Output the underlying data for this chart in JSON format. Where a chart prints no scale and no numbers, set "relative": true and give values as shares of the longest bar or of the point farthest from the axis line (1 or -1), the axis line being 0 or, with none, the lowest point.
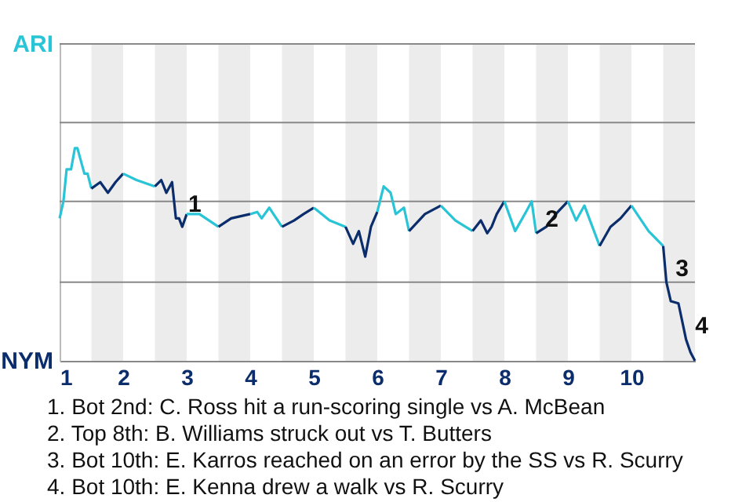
{
  "chart_data": {
    "type": "line",
    "relative": true,
    "series": [
      {
        "name": "ARI",
        "color": "#29c4d6",
        "x": [
          1,
          1.06,
          1.11,
          1.18,
          1.24,
          1.28,
          1.39,
          1.44,
          1.5
        ],
        "values": [
          0.67,
          0.75,
          0.9,
          0.9,
          1,
          1,
          0.88,
          0.88,
          0.81
        ]
      },
      {
        "name": "NYM",
        "color": "#0b2d6b",
        "x": [
          1.5,
          1.64,
          1.76,
          1.88,
          2
        ],
        "values": [
          0.81,
          0.84,
          0.79,
          0.84,
          0.88
        ]
      },
      {
        "color": "#29c4d6",
        "x": [
          2,
          2.21,
          2.5
        ],
        "values": [
          0.88,
          0.85,
          0.82
        ]
      },
      {
        "color": "#0b2d6b",
        "x": [
          2.5,
          2.6,
          2.68,
          2.77,
          2.83,
          2.88,
          2.93,
          3
        ],
        "values": [
          0.82,
          0.85,
          0.79,
          0.84,
          0.67,
          0.67,
          0.63,
          0.69
        ]
      },
      {
        "color": "#29c4d6",
        "x": [
          3,
          3.2,
          3.5
        ],
        "values": [
          0.69,
          0.69,
          0.63
        ]
      },
      {
        "color": "#0b2d6b",
        "x": [
          3.5,
          3.7,
          4
        ],
        "values": [
          0.63,
          0.67,
          0.69
        ]
      },
      {
        "color": "#29c4d6",
        "x": [
          4,
          4.11,
          4.18,
          4.3,
          4.5
        ],
        "values": [
          0.69,
          0.7,
          0.67,
          0.72,
          0.63
        ]
      },
      {
        "color": "#0b2d6b",
        "x": [
          4.5,
          4.69,
          4.84,
          5
        ],
        "values": [
          0.63,
          0.66,
          0.69,
          0.72
        ]
      },
      {
        "color": "#29c4d6",
        "x": [
          5,
          5.25,
          5.5
        ],
        "values": [
          0.72,
          0.66,
          0.63
        ]
      },
      {
        "color": "#0b2d6b",
        "x": [
          5.5,
          5.62,
          5.71,
          5.81,
          5.9,
          6
        ],
        "values": [
          0.63,
          0.55,
          0.61,
          0.49,
          0.63,
          0.7
        ]
      },
      {
        "color": "#29c4d6",
        "x": [
          6,
          6.1,
          6.21,
          6.29,
          6.42,
          6.5
        ],
        "values": [
          0.7,
          0.82,
          0.79,
          0.69,
          0.72,
          0.61
        ]
      },
      {
        "color": "#0b2d6b",
        "x": [
          6.5,
          6.75,
          7
        ],
        "values": [
          0.61,
          0.69,
          0.73
        ]
      },
      {
        "color": "#29c4d6",
        "x": [
          7,
          7.23,
          7.5
        ],
        "values": [
          0.73,
          0.66,
          0.61
        ]
      },
      {
        "color": "#0b2d6b",
        "x": [
          7.5,
          7.63,
          7.73,
          7.8,
          7.88,
          8
        ],
        "values": [
          0.61,
          0.66,
          0.6,
          0.63,
          0.69,
          0.75
        ]
      },
      {
        "color": "#29c4d6",
        "x": [
          8,
          8.17,
          8.34,
          8.43,
          8.5
        ],
        "values": [
          0.75,
          0.61,
          0.7,
          0.75,
          0.6
        ]
      },
      {
        "color": "#0b2d6b",
        "x": [
          8.5,
          8.66,
          8.81,
          9
        ],
        "values": [
          0.6,
          0.63,
          0.69,
          0.75
        ]
      },
      {
        "color": "#29c4d6",
        "x": [
          9,
          9.13,
          9.26,
          9.5
        ],
        "values": [
          0.75,
          0.66,
          0.73,
          0.54
        ]
      },
      {
        "color": "#0b2d6b",
        "x": [
          9.5,
          9.67,
          9.83,
          10
        ],
        "values": [
          0.54,
          0.63,
          0.67,
          0.73
        ]
      },
      {
        "color": "#29c4d6",
        "x": [
          10,
          10.27,
          10.5
        ],
        "values": [
          0.73,
          0.61,
          0.54
        ]
      },
      {
        "color": "#0b2d6b",
        "x": [
          10.5,
          10.55,
          10.62,
          10.74,
          10.86,
          10.93,
          11
        ],
        "values": [
          0.54,
          0.37,
          0.28,
          0.27,
          0.1,
          0.04,
          0
        ]
      }
    ],
    "xlim": [
      1,
      11
    ],
    "xticks": [
      1,
      2,
      3,
      4,
      5,
      6,
      7,
      8,
      9,
      10
    ],
    "ref_lines": [
      {
        "axis": "y",
        "value": 0.37,
        "color": "#888888"
      },
      {
        "axis": "y",
        "value": 0.75,
        "color": "#888888"
      },
      {
        "axis": "y",
        "value": 1.12,
        "color": "#888888"
      },
      {
        "axis": "y",
        "value": 1.49,
        "color": "#888888"
      }
    ],
    "bands": [
      {
        "axis": "x",
        "from": 1.5,
        "to": 2,
        "color": "#ececec"
      },
      {
        "axis": "x",
        "from": 2.5,
        "to": 3,
        "color": "#ececec"
      },
      {
        "axis": "x",
        "from": 3.5,
        "to": 4,
        "color": "#ececec"
      },
      {
        "axis": "x",
        "from": 4.5,
        "to": 5,
        "color": "#ececec"
      },
      {
        "axis": "x",
        "from": 5.5,
        "to": 6,
        "color": "#ececec"
      },
      {
        "axis": "x",
        "from": 6.5,
        "to": 7,
        "color": "#ececec"
      },
      {
        "axis": "x",
        "from": 7.5,
        "to": 8,
        "color": "#ececec"
      },
      {
        "axis": "x",
        "from": 8.5,
        "to": 9,
        "color": "#ececec"
      },
      {
        "axis": "x",
        "from": 9.5,
        "to": 10,
        "color": "#ececec"
      },
      {
        "axis": "x",
        "from": 10.5,
        "to": 11,
        "color": "#ececec"
      }
    ],
    "annotations": [
      {
        "text": "1",
        "x": 2.88,
        "y": 0.67
      },
      {
        "text": "2",
        "x": 8.5,
        "y": 0.6
      },
      {
        "text": "3",
        "x": 10.55,
        "y": 0.37
      },
      {
        "text": "4",
        "x": 10.86,
        "y": 0.1
      },
      "1. Bot 2nd: C. Ross hit a run-scoring single vs A. McBean",
      "2. Top 8th: B. Williams struck out vs T. Butters",
      "3. Bot 10th: E. Karros reached on an error by the SS vs R. Scurry",
      "4. Bot 10th: E. Kenna drew a walk vs R. Scurry"
    ]
  }
}
